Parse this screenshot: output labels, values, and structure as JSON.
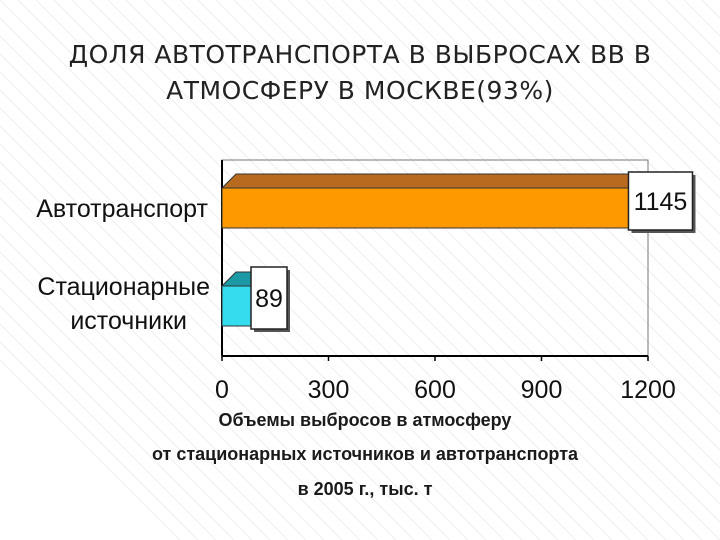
{
  "title": {
    "line1": "ДОЛЯ АВТОТРАНСПОРТА В ВЫБРОСАХ ВВ В",
    "line2": "АТМОСФЕРУ  В МОСКВЕ(93%)"
  },
  "caption": {
    "line1": "Объемы выбросов в атмосферу",
    "line2": "от стационарных источников и автотранспорта",
    "line3": "в 2005 г., тыс. т"
  },
  "colors": {
    "background": "#ffffff",
    "stripe": "#e6e6e6",
    "bar_auto": "#ff9900",
    "bar_auto_top": "#b86b1e",
    "bar_stationary": "#33ddee",
    "bar_stationary_top": "#1b9aa6",
    "label_box": "#ffffff",
    "axis": "#000000"
  },
  "chart_data": {
    "type": "bar",
    "orientation": "horizontal",
    "style": "3d",
    "categories": [
      {
        "label_lines": [
          "Автотранспорт"
        ],
        "value": 1145,
        "value_label": "1145",
        "color": "#ff9900"
      },
      {
        "label_lines": [
          "Стационарные",
          "источники"
        ],
        "value": 89,
        "value_label": "89",
        "color": "#33ddee"
      }
    ],
    "xlim": [
      0,
      1200
    ],
    "xticks": [
      "0",
      "300",
      "600",
      "900",
      "1200"
    ],
    "xtick_values": [
      0,
      300,
      600,
      900,
      1200
    ],
    "grid": false,
    "legend": "none"
  }
}
